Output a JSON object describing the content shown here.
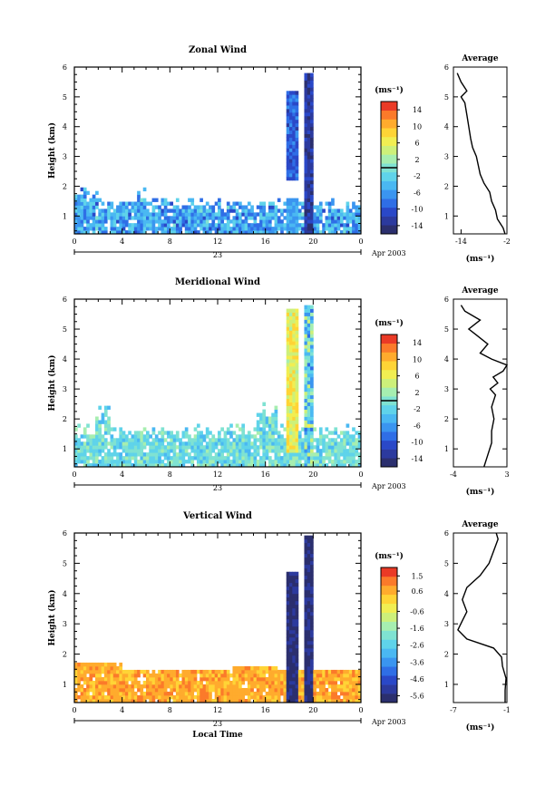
{
  "date_label": "Apr 2003",
  "day_label": "23",
  "xlabel_bottom": "Local Time",
  "colorbar_unit": "(ms⁻¹)",
  "colormap": [
    "#2b2f6e",
    "#2c3a9e",
    "#2a48c8",
    "#2f6ee6",
    "#3a95f0",
    "#4ab8f2",
    "#5fd3ea",
    "#7fe2d2",
    "#a6eeb0",
    "#cdf07a",
    "#f1ee52",
    "#ffd436",
    "#ffab2d",
    "#fb7a2a",
    "#ea3a26"
  ],
  "chart_data": [
    {
      "id": "zonal",
      "type": "heatmap",
      "title": "Zonal Wind",
      "xlabel": "",
      "ylabel": "Height (km)",
      "xlim": [
        0,
        24
      ],
      "ylim": [
        0.4,
        6
      ],
      "x_ticks": [
        "0",
        "4",
        "8",
        "12",
        "16",
        "20",
        "0"
      ],
      "y_ticks": [
        "1",
        "2",
        "3",
        "4",
        "5",
        "6"
      ],
      "colorbar": {
        "ticks": [
          "14",
          "10",
          "6",
          "2",
          "-2",
          "-6",
          "-10",
          "-14"
        ],
        "range": [
          -16,
          16
        ],
        "marker": 0
      },
      "avg": {
        "title": "Average",
        "xlabel": "(ms⁻¹)",
        "x_ticks": [
          "-14",
          "-2"
        ],
        "xlim": [
          -16,
          -2
        ],
        "profile_height": [
          0.4,
          0.6,
          0.9,
          1.2,
          1.5,
          1.8,
          2.1,
          2.4,
          2.7,
          3.0,
          3.3,
          3.6,
          4.0,
          4.4,
          4.8,
          5.0,
          5.2,
          5.5,
          5.8
        ],
        "profile_value": [
          -2.5,
          -3,
          -4.5,
          -5,
          -6,
          -6.5,
          -8,
          -9,
          -9.5,
          -10,
          -11,
          -11.5,
          -12,
          -12.5,
          -13,
          -14,
          -12.5,
          -14,
          -15
        ]
      }
    },
    {
      "id": "meridional",
      "type": "heatmap",
      "title": "Meridional Wind",
      "xlabel": "",
      "ylabel": "Height (km)",
      "xlim": [
        0,
        24
      ],
      "ylim": [
        0.4,
        6
      ],
      "x_ticks": [
        "0",
        "4",
        "8",
        "12",
        "16",
        "20",
        "0"
      ],
      "y_ticks": [
        "1",
        "2",
        "3",
        "4",
        "5",
        "6"
      ],
      "colorbar": {
        "ticks": [
          "14",
          "10",
          "6",
          "2",
          "-2",
          "-6",
          "-10",
          "-14"
        ],
        "range": [
          -16,
          16
        ],
        "marker": 0
      },
      "avg": {
        "title": "Average",
        "xlabel": "(ms⁻¹)",
        "x_ticks": [
          "-4",
          "3"
        ],
        "xlim": [
          -4,
          3
        ],
        "profile_height": [
          0.4,
          0.8,
          1.2,
          1.6,
          2.0,
          2.4,
          2.8,
          3.0,
          3.2,
          3.4,
          3.6,
          3.8,
          4.0,
          4.2,
          4.5,
          4.8,
          5.0,
          5.3,
          5.6,
          5.8
        ],
        "profile_value": [
          0,
          0.5,
          1,
          1,
          1.3,
          1,
          1.5,
          0.8,
          1.8,
          1.2,
          2.5,
          3,
          1,
          -0.5,
          0.5,
          -1,
          -2,
          -0.5,
          -2.5,
          -3
        ]
      }
    },
    {
      "id": "vertical",
      "type": "heatmap",
      "title": "Vertical Wind",
      "xlabel": "Local Time",
      "ylabel": "Height (km)",
      "xlim": [
        0,
        24
      ],
      "ylim": [
        0.4,
        6
      ],
      "x_ticks": [
        "0",
        "4",
        "8",
        "12",
        "16",
        "20",
        "0"
      ],
      "y_ticks": [
        "1",
        "2",
        "3",
        "4",
        "5",
        "6"
      ],
      "colorbar": {
        "ticks": [
          "1.5",
          "0.6",
          "-0.6",
          "-1.6",
          "-2.6",
          "-3.6",
          "-4.6",
          "-5.6"
        ],
        "range": [
          -6.0,
          2.0
        ],
        "marker": null
      },
      "avg": {
        "title": "Average",
        "xlabel": "(ms⁻¹)",
        "x_ticks": [
          "-7",
          "-1"
        ],
        "xlim": [
          -7,
          -1
        ],
        "profile_height": [
          0.4,
          0.8,
          1.2,
          1.6,
          1.9,
          2.2,
          2.5,
          2.8,
          3.1,
          3.4,
          3.8,
          4.2,
          4.6,
          5.0,
          5.4,
          5.8,
          6.0
        ],
        "profile_value": [
          -1.2,
          -1.2,
          -1.1,
          -1.5,
          -1.6,
          -2.5,
          -5.5,
          -6.5,
          -6,
          -5.5,
          -6,
          -5.5,
          -4,
          -3,
          -2.5,
          -2,
          -2.2
        ]
      }
    }
  ]
}
